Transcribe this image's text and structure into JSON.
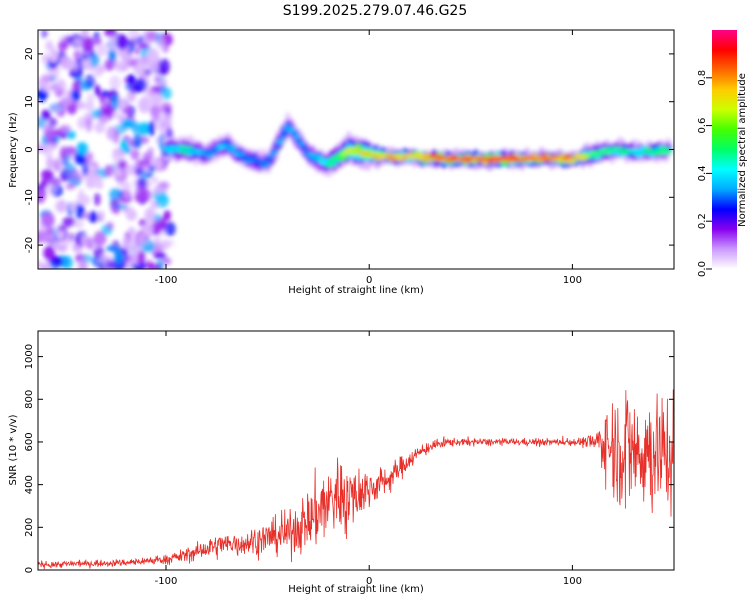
{
  "figure_title": "S199.2025.279.07.46.G25",
  "colors": {
    "snr_line": "#e8302a",
    "frame": "#000000"
  },
  "colorbar": {
    "label": "Normalized spectral amplitude",
    "ticks": [
      "0.0",
      "0.2",
      "0.4",
      "0.6",
      "0.8"
    ],
    "range": [
      0,
      1
    ],
    "stops": [
      "#ffffff",
      "#cc99ff",
      "#8800ee",
      "#0000ff",
      "#00aaff",
      "#00ffff",
      "#00ff66",
      "#44ff00",
      "#ccff00",
      "#ffcc00",
      "#ff6600",
      "#ff0000",
      "#ff0088"
    ]
  },
  "chart_data": [
    {
      "id": "spectrogram",
      "type": "heatmap",
      "title": "S199.2025.279.07.46.G25",
      "xlabel": "Height of straight line (km)",
      "ylabel": "Frequency (Hz)",
      "xlim": [
        -163,
        150
      ],
      "ylim": [
        -25,
        25
      ],
      "xticks": [
        -100,
        0,
        100
      ],
      "yticks": [
        -20,
        -10,
        0,
        10,
        20
      ],
      "track": {
        "x": [
          -100,
          -90,
          -80,
          -70,
          -60,
          -50,
          -40,
          -30,
          -20,
          -10,
          0,
          10,
          20,
          40,
          60,
          80,
          100,
          110,
          120,
          130,
          140,
          148
        ],
        "y": [
          0,
          0,
          -1,
          1,
          -2,
          -3,
          5,
          -1,
          -3,
          0,
          -1,
          -1.5,
          -1.5,
          -2,
          -2,
          -2,
          -2,
          -1,
          0,
          -0.5,
          -0.5,
          0
        ],
        "amp": [
          0.45,
          0.5,
          0.35,
          0.4,
          0.35,
          0.35,
          0.4,
          0.35,
          0.5,
          0.7,
          0.75,
          0.9,
          0.85,
          0.95,
          1.0,
          0.95,
          0.9,
          0.6,
          0.55,
          0.5,
          0.5,
          0.55
        ]
      }
    },
    {
      "id": "snr",
      "type": "line",
      "xlabel": "Height of straight line (km)",
      "ylabel": "SNR (10 * v/v)",
      "xlim": [
        -163,
        150
      ],
      "ylim": [
        0,
        1120
      ],
      "xticks": [
        -100,
        0,
        100
      ],
      "yticks": [
        0,
        200,
        400,
        600,
        800,
        1000
      ],
      "envelope": {
        "x": [
          -163,
          -140,
          -120,
          -100,
          -90,
          -80,
          -70,
          -60,
          -50,
          -40,
          -30,
          -25,
          -20,
          -15,
          -10,
          -5,
          0,
          10,
          20,
          30,
          40,
          60,
          80,
          100,
          110,
          115,
          120,
          130,
          140,
          150
        ],
        "mean": [
          25,
          30,
          35,
          50,
          70,
          100,
          120,
          130,
          150,
          170,
          230,
          280,
          320,
          360,
          340,
          360,
          380,
          430,
          520,
          580,
          600,
          600,
          600,
          600,
          600,
          600,
          580,
          560,
          560,
          560
        ],
        "noise": [
          15,
          15,
          15,
          20,
          30,
          45,
          55,
          60,
          70,
          90,
          130,
          170,
          180,
          180,
          160,
          120,
          80,
          60,
          40,
          25,
          20,
          15,
          15,
          15,
          30,
          120,
          220,
          280,
          260,
          260
        ]
      }
    }
  ]
}
